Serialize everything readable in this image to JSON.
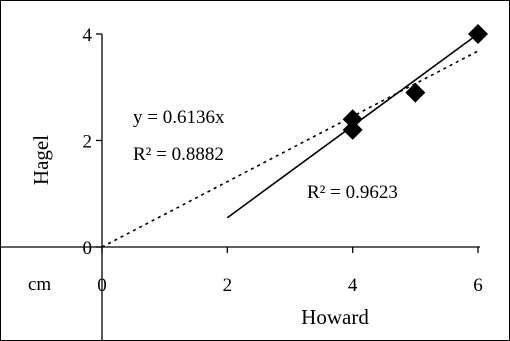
{
  "chart_data": {
    "type": "scatter",
    "title": "",
    "xlabel": "Howard",
    "ylabel": "Hagel",
    "corner_unit": "cm",
    "xlim": [
      0,
      6
    ],
    "ylim": [
      0,
      4
    ],
    "x_ticks": [
      0,
      2,
      4,
      6
    ],
    "y_ticks": [
      0,
      2,
      4
    ],
    "x_tick_labels": [
      "0",
      "2",
      "4",
      "6"
    ],
    "y_tick_labels": [
      "0",
      "2",
      "4"
    ],
    "grid": false,
    "points": [
      {
        "x": 4.0,
        "y": 2.4
      },
      {
        "x": 4.0,
        "y": 2.2
      },
      {
        "x": 5.0,
        "y": 2.9
      },
      {
        "x": 6.0,
        "y": 4.0
      }
    ],
    "marker": "diamond",
    "marker_color": "#000000",
    "trendlines": [
      {
        "style": "dashed",
        "x_start": 0,
        "y_start": 0,
        "x_end": 6,
        "y_end": 3.68,
        "equation_label": "y = 0.6136x",
        "r2_label": "R² = 0.8882"
      },
      {
        "style": "solid",
        "x_start": 2,
        "y_start": 0.55,
        "x_end": 6,
        "y_end": 4.0,
        "r2_label": "R² = 0.9623"
      }
    ]
  }
}
